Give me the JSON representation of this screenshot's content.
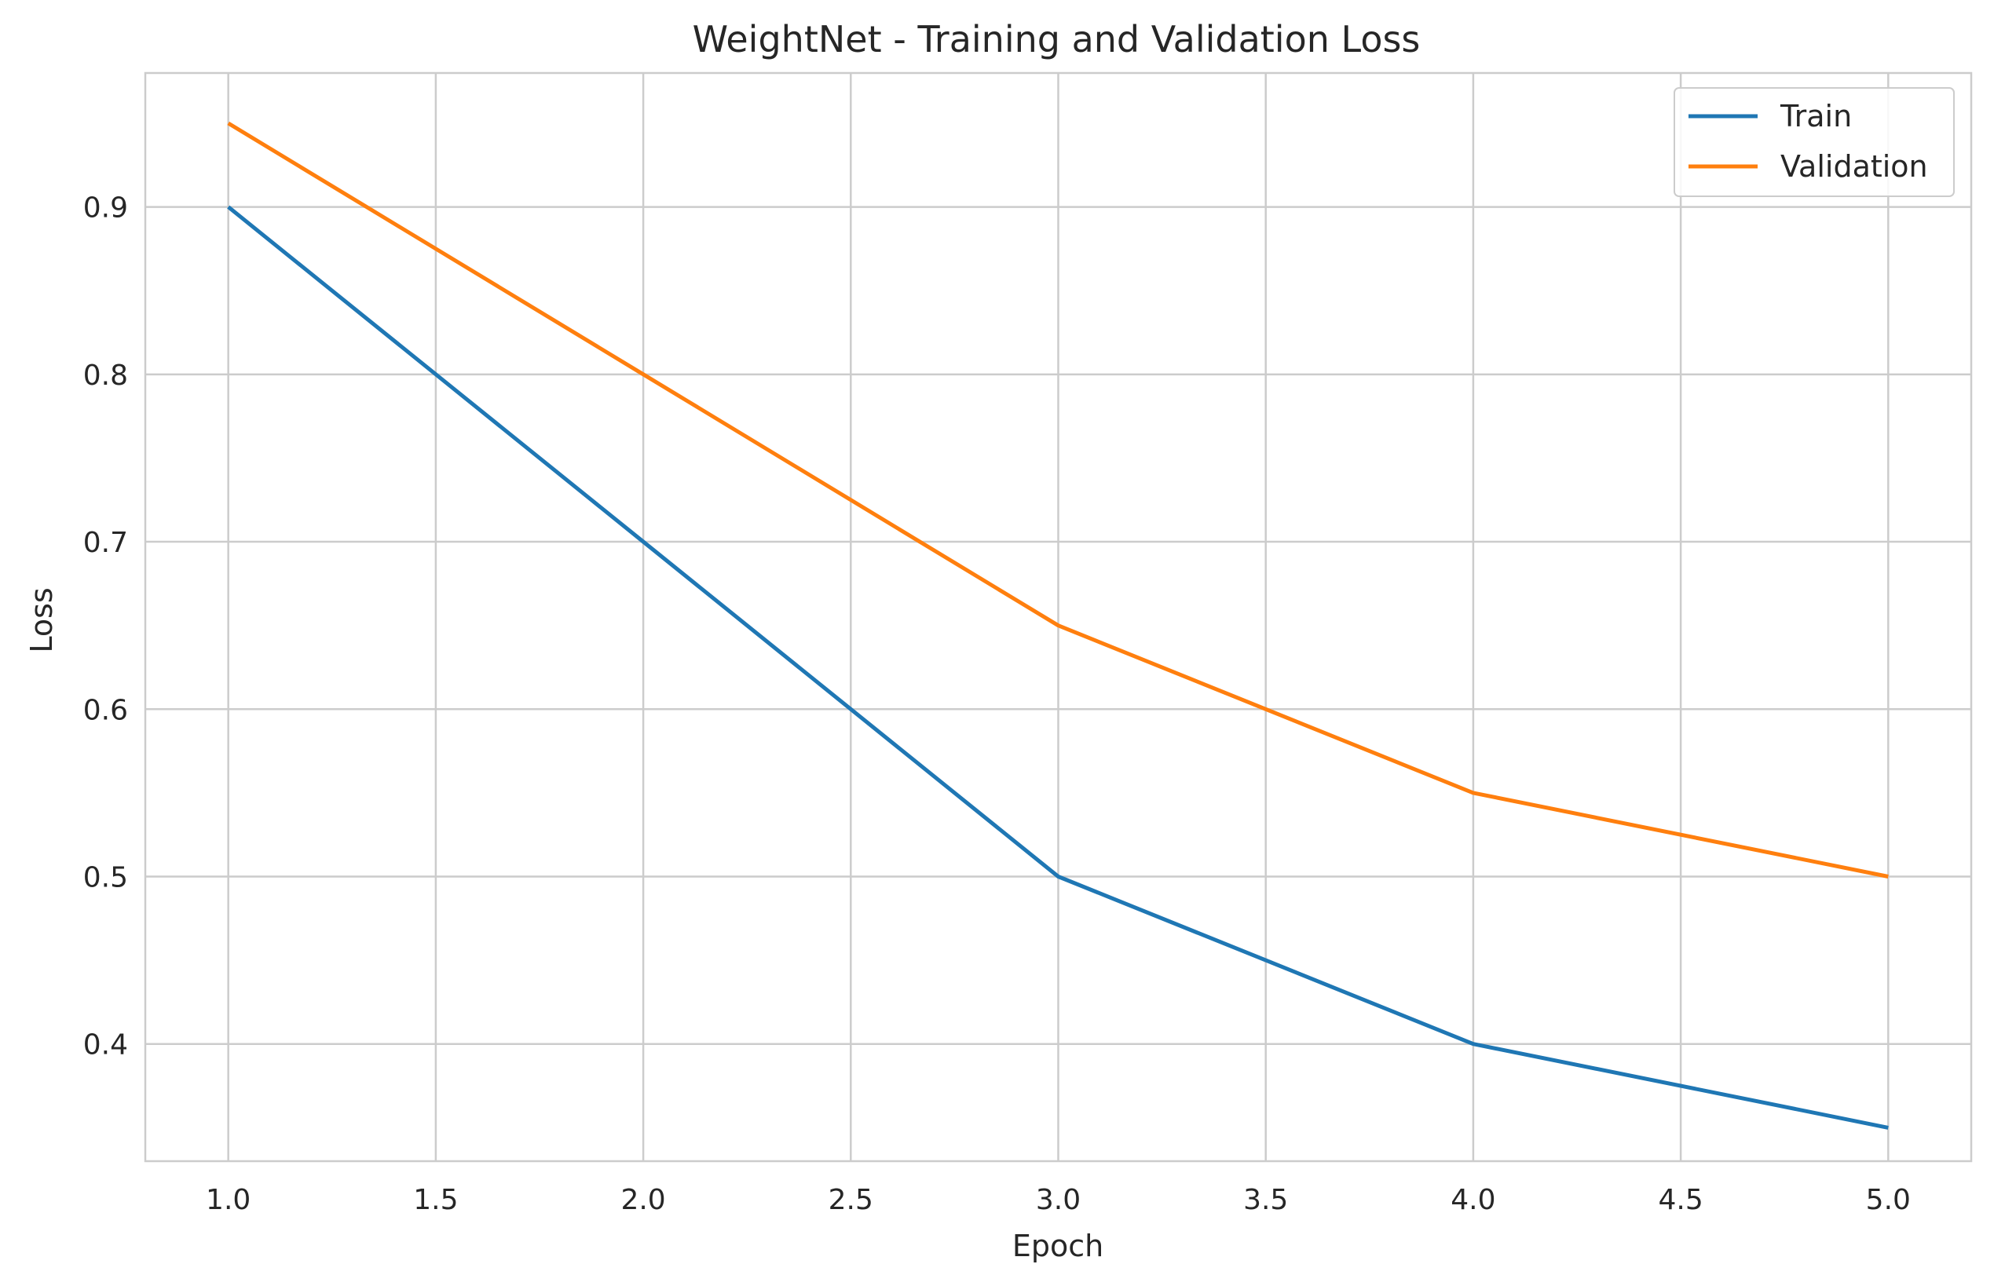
{
  "chart_data": {
    "type": "line",
    "title": "WeightNet - Training and Validation Loss",
    "xlabel": "Epoch",
    "ylabel": "Loss",
    "x": [
      1,
      2,
      3,
      4,
      5
    ],
    "series": [
      {
        "name": "Train",
        "values": [
          0.9,
          0.7,
          0.5,
          0.4,
          0.35
        ],
        "color": "#1f77b4"
      },
      {
        "name": "Validation",
        "values": [
          0.95,
          0.8,
          0.65,
          0.55,
          0.5
        ],
        "color": "#ff7f0e"
      }
    ],
    "xlim": [
      0.8,
      5.2
    ],
    "ylim": [
      0.33,
      0.98
    ],
    "xticks": [
      1.0,
      1.5,
      2.0,
      2.5,
      3.0,
      3.5,
      4.0,
      4.5,
      5.0
    ],
    "xtick_labels": [
      "1.0",
      "1.5",
      "2.0",
      "2.5",
      "3.0",
      "3.5",
      "4.0",
      "4.5",
      "5.0"
    ],
    "yticks": [
      0.4,
      0.5,
      0.6,
      0.7,
      0.8,
      0.9
    ],
    "ytick_labels": [
      "0.4",
      "0.5",
      "0.6",
      "0.7",
      "0.8",
      "0.9"
    ],
    "grid": true,
    "legend_position": "top-right"
  }
}
